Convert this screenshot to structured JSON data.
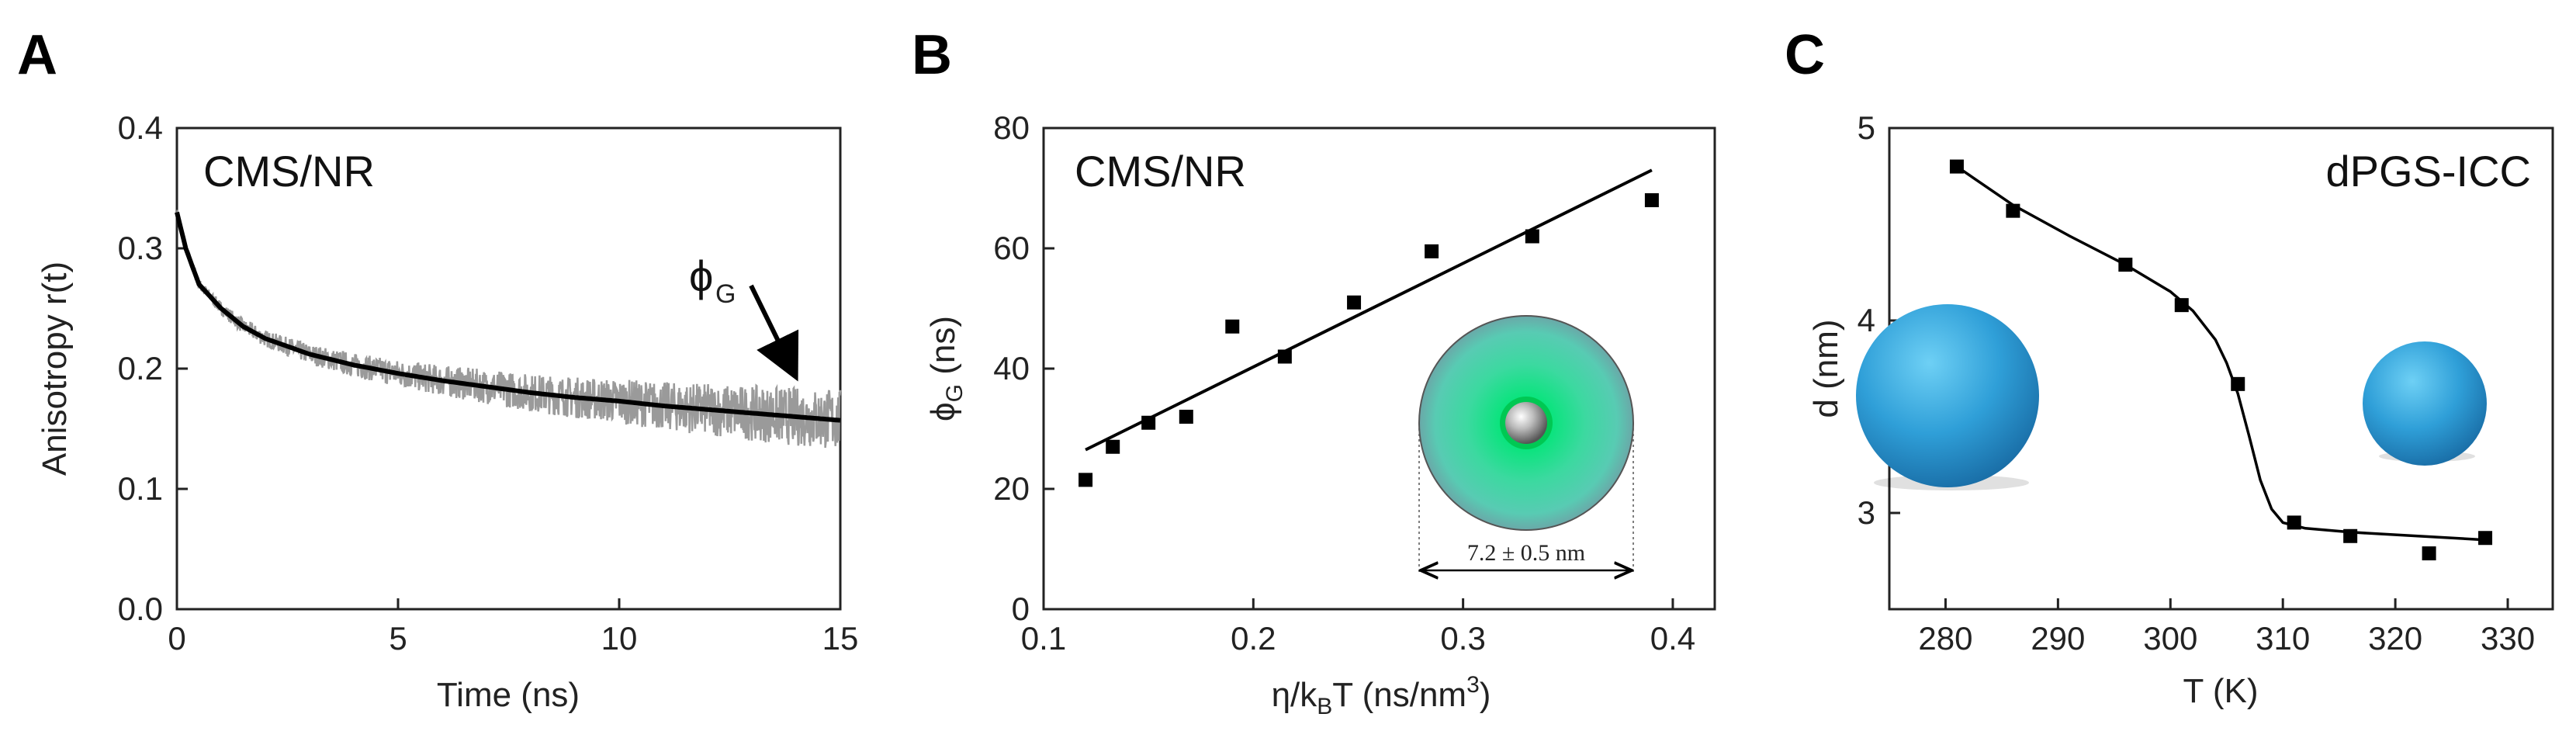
{
  "panels": {
    "A": {
      "letter": "A",
      "inset_text": "CMS/NR",
      "annotation": "ϕ",
      "annotation_sub": "G"
    },
    "B": {
      "letter": "B",
      "inset_text": "CMS/NR",
      "dim_label": "7.2 ± 0.5 nm"
    },
    "C": {
      "letter": "C",
      "inset_text": "dPGS-ICC"
    }
  },
  "colors": {
    "raw_trace": "#9a9a9a",
    "fit": "#000000",
    "marker": "#000000",
    "sphere": "#2f9fd8",
    "halo": "#3cd9a0"
  },
  "chart_data": [
    {
      "type": "line",
      "panel": "A",
      "xlabel": "Time (ns)",
      "ylabel": "Anisotropy r(t)",
      "xlim": [
        0,
        15
      ],
      "ylim": [
        0.0,
        0.4
      ],
      "xticks": [
        0,
        5,
        10,
        15
      ],
      "yticks": [
        0.0,
        0.1,
        0.2,
        0.3,
        0.4
      ],
      "ytick_labels": [
        "0.0",
        "0.1",
        "0.2",
        "0.3",
        "0.4"
      ],
      "series": [
        {
          "role": "raw",
          "x": [
            0,
            0.2,
            0.5,
            1,
            1.5,
            2,
            3,
            4,
            5,
            6,
            7,
            8,
            9,
            10,
            11,
            12,
            13,
            14,
            15
          ],
          "y": [
            0.33,
            0.3,
            0.27,
            0.25,
            0.235,
            0.225,
            0.212,
            0.203,
            0.196,
            0.19,
            0.185,
            0.18,
            0.176,
            0.173,
            0.169,
            0.166,
            0.163,
            0.16,
            0.157
          ]
        },
        {
          "role": "fit",
          "x": [
            0,
            0.2,
            0.5,
            1,
            1.5,
            2,
            3,
            4,
            5,
            6,
            7,
            8,
            9,
            10,
            11,
            12,
            13,
            14,
            15
          ],
          "y": [
            0.33,
            0.3,
            0.27,
            0.25,
            0.235,
            0.225,
            0.212,
            0.203,
            0.196,
            0.19,
            0.185,
            0.18,
            0.176,
            0.173,
            0.169,
            0.166,
            0.163,
            0.16,
            0.157
          ]
        }
      ]
    },
    {
      "type": "scatter",
      "panel": "B",
      "xlabel_parts": [
        "η/k",
        "B",
        "T (ns/nm",
        "3",
        ")"
      ],
      "ylabel_parts": [
        "ϕ",
        "G",
        " (ns)"
      ],
      "xlim": [
        0.1,
        0.42
      ],
      "ylim": [
        0,
        80
      ],
      "xticks": [
        0.1,
        0.2,
        0.3,
        0.4
      ],
      "xtick_labels": [
        "0.1",
        "0.2",
        "0.3",
        "0.4"
      ],
      "yticks": [
        0,
        20,
        40,
        60,
        80
      ],
      "points": {
        "x": [
          0.12,
          0.133,
          0.15,
          0.168,
          0.19,
          0.215,
          0.248,
          0.285,
          0.333,
          0.39
        ],
        "y": [
          21.5,
          27,
          31,
          32,
          47,
          42,
          51,
          59.5,
          62,
          68
        ]
      },
      "fit_line": {
        "x": [
          0.12,
          0.39
        ],
        "y": [
          26.5,
          73
        ]
      }
    },
    {
      "type": "scatter",
      "panel": "C",
      "xlabel": "T (K)",
      "ylabel": "d (nm)",
      "xlim": [
        275,
        334
      ],
      "ylim": [
        2.5,
        5
      ],
      "xticks": [
        280,
        290,
        300,
        310,
        320,
        330
      ],
      "yticks": [
        3,
        4,
        5
      ],
      "points": {
        "x": [
          281,
          286,
          296,
          301,
          306,
          311,
          316,
          323,
          328
        ],
        "y": [
          4.8,
          4.57,
          4.29,
          4.08,
          3.67,
          2.95,
          2.88,
          2.79,
          2.87
        ]
      },
      "fit_curve": {
        "x": [
          281,
          286,
          291,
          296,
          300,
          302,
          304,
          305,
          306,
          307,
          308,
          309,
          310,
          312,
          316,
          322,
          328
        ],
        "y": [
          4.8,
          4.6,
          4.44,
          4.29,
          4.15,
          4.05,
          3.9,
          3.78,
          3.62,
          3.4,
          3.17,
          3.02,
          2.95,
          2.92,
          2.9,
          2.88,
          2.86
        ]
      }
    }
  ]
}
